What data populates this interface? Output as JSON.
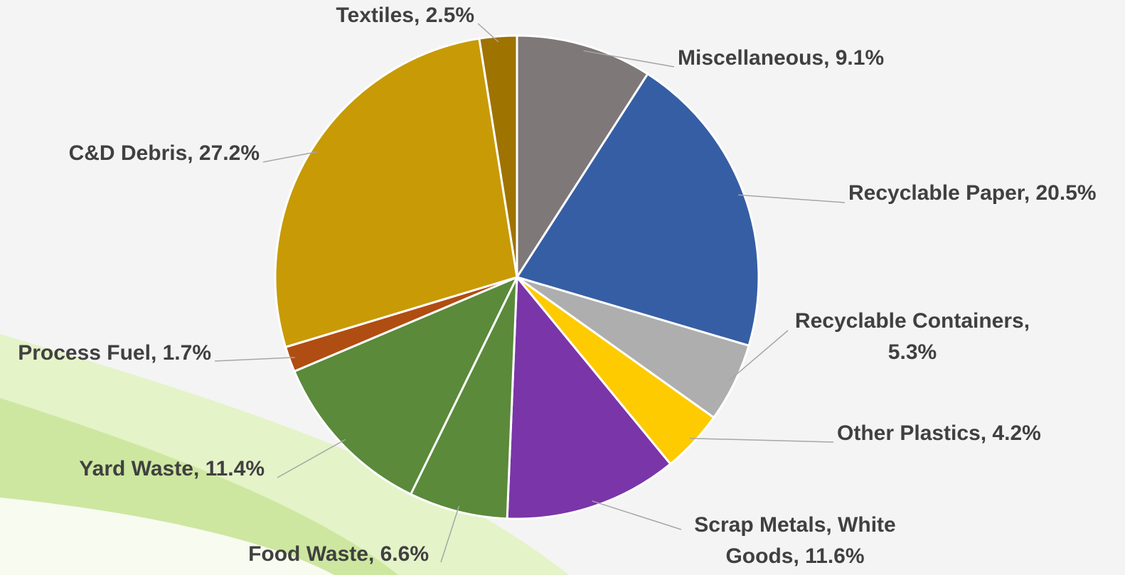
{
  "chart_data": {
    "type": "pie",
    "labels": [
      "Miscellaneous, 9.1%",
      "Recyclable Paper, 20.5%",
      "Recyclable Containers, 5.3%",
      "Other Plastics, 4.2%",
      "Scrap Metals, White Goods, 11.6%",
      "Food Waste, 6.6%",
      "Yard Waste, 11.4%",
      "Process Fuel, 1.7%",
      "C&D Debris, 27.2%",
      "Textiles, 2.5%"
    ],
    "values": [
      9.1,
      20.5,
      5.3,
      4.2,
      11.6,
      6.6,
      11.4,
      1.7,
      27.2,
      2.5
    ],
    "colors": [
      "#7f7878",
      "#365ea4",
      "#aeaeae",
      "#fecb00",
      "#7a35a8",
      "#5a8a3a",
      "#5a8a3a",
      "#b04d12",
      "#c89a06",
      "#9e7300"
    ]
  }
}
